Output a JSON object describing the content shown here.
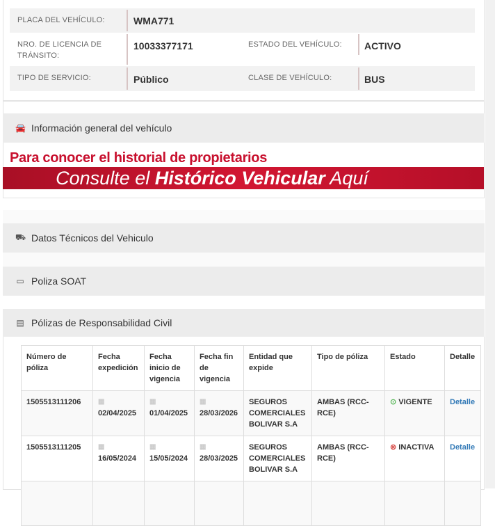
{
  "vehicle": {
    "placa_label": "PLACA DEL VEHÍCULO:",
    "placa": "WMA771",
    "licencia_label": "NRO. DE LICENCIA DE TRÁNSITO:",
    "licencia": "10033377171",
    "estado_label": "ESTADO DEL VEHÍCULO:",
    "estado": "ACTIVO",
    "servicio_label": "TIPO DE SERVICIO:",
    "servicio": "Público",
    "clase_label": "CLASE DE VEHÍCULO:",
    "clase": "BUS"
  },
  "sections": {
    "general": "Información general del vehículo",
    "tecnicos": "Datos Técnicos del Vehiculo",
    "soat": "Poliza SOAT",
    "rc": "Pólizas de Responsabilidad Civil"
  },
  "promo": {
    "line1": "Para conocer el historial de propietarios",
    "banner_pre": "Consulte el ",
    "banner_bold": "Histórico Vehicular",
    "banner_post": " Aquí"
  },
  "rc_table": {
    "headers": [
      "Número de póliza",
      "Fecha expedición",
      "Fecha inicio de vigencia",
      "Fecha fin de vigencia",
      "Entidad que expide",
      "Tipo de póliza",
      "Estado",
      "Detalle"
    ],
    "rows": [
      {
        "numero": "1505513111206",
        "expedicion": "02/04/2025",
        "inicio": "01/04/2025",
        "fin": "28/03/2026",
        "entidad": "SEGUROS COMERCIALES BOLIVAR S.A",
        "tipo": "AMBAS (RCC-RCE)",
        "estado": "VIGENTE",
        "detalle": "Detalle"
      },
      {
        "numero": "1505513111205",
        "expedicion": "16/05/2024",
        "inicio": "15/05/2024",
        "fin": "28/03/2025",
        "entidad": "SEGUROS COMERCIALES BOLIVAR S.A",
        "tipo": "AMBAS (RCC-RCE)",
        "estado": "INACTIVA",
        "detalle": "Detalle"
      }
    ]
  },
  "colors": {
    "brand_red": "#c8102e",
    "vigente": "#5cb85c",
    "inactiva": "#d9534f",
    "link": "#337ab7"
  }
}
